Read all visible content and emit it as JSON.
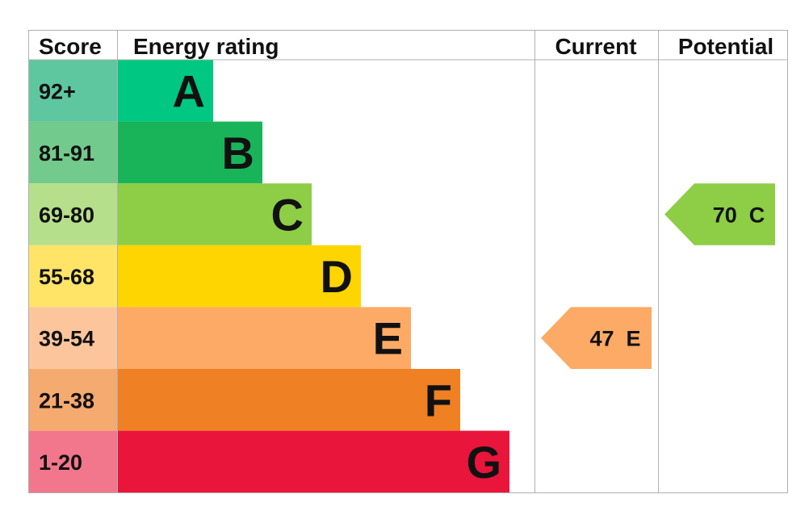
{
  "chart_data": {
    "type": "bar",
    "headers": {
      "score": "Score",
      "rating": "Energy rating",
      "current": "Current",
      "potential": "Potential"
    },
    "bands": [
      {
        "letter": "A",
        "range": "92+",
        "color": "#00c781",
        "score_color": "#5fc7a0"
      },
      {
        "letter": "B",
        "range": "81-91",
        "color": "#19b459",
        "score_color": "#72ca8c"
      },
      {
        "letter": "C",
        "range": "69-80",
        "color": "#8dce46",
        "score_color": "#b6df8b"
      },
      {
        "letter": "D",
        "range": "55-68",
        "color": "#ffd500",
        "score_color": "#ffe468"
      },
      {
        "letter": "E",
        "range": "39-54",
        "color": "#fcaa65",
        "score_color": "#fdc59c"
      },
      {
        "letter": "F",
        "range": "21-38",
        "color": "#ef8023",
        "score_color": "#f5aa70"
      },
      {
        "letter": "G",
        "range": "1-20",
        "color": "#e9153b",
        "score_color": "#f2778d"
      }
    ],
    "current": {
      "value": 47,
      "band": "E",
      "label": "47  E"
    },
    "potential": {
      "value": 70,
      "band": "C",
      "label": "70  C"
    }
  }
}
